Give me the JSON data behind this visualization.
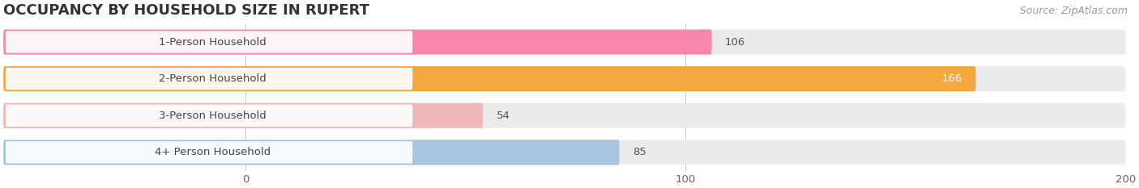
{
  "title": "OCCUPANCY BY HOUSEHOLD SIZE IN RUPERT",
  "source": "Source: ZipAtlas.com",
  "categories": [
    "1-Person Household",
    "2-Person Household",
    "3-Person Household",
    "4+ Person Household"
  ],
  "values": [
    106,
    166,
    54,
    85
  ],
  "bar_colors": [
    "#f987ac",
    "#f5a742",
    "#f0b8b8",
    "#a8c4e0"
  ],
  "xlim": [
    -55,
    200
  ],
  "xticks": [
    0,
    100,
    200
  ],
  "background_color": "#ffffff",
  "bar_bg_color": "#ebebeb",
  "title_fontsize": 13,
  "label_fontsize": 9.5,
  "value_fontsize": 9.5,
  "source_fontsize": 9,
  "bar_height": 0.68,
  "bar_gap": 0.25
}
